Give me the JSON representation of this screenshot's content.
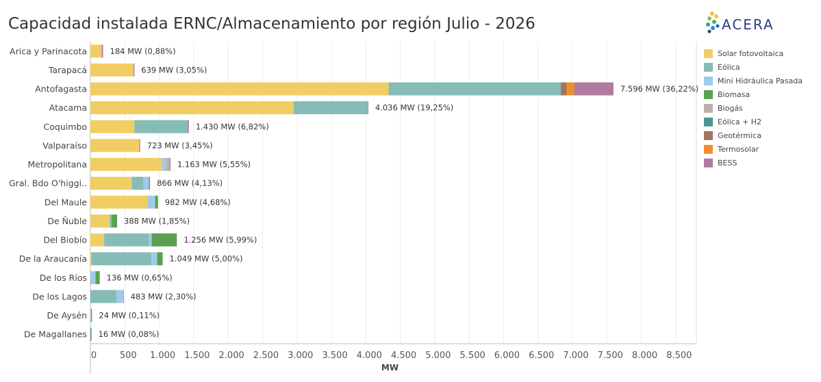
{
  "chart_data": {
    "type": "bar",
    "orientation": "horizontal",
    "stacked": true,
    "title": "Capacidad instalada ERNC/Almacenamiento por región Julio - 2026",
    "xlabel": "MW",
    "ylabel": "",
    "xlim": [
      0,
      8800
    ],
    "xticks": [
      0,
      500,
      1000,
      1500,
      2000,
      2500,
      3000,
      3500,
      4000,
      4500,
      5000,
      5500,
      6000,
      6500,
      7000,
      7500,
      8000,
      8500
    ],
    "xtick_labels": [
      "0",
      "500",
      "1.000",
      "1.500",
      "2.000",
      "2.500",
      "3.000",
      "3.500",
      "4.000",
      "4.500",
      "5.000",
      "5.500",
      "6.000",
      "6.500",
      "7.000",
      "7.500",
      "8.000",
      "8.500"
    ],
    "grid": true,
    "legend_position": "right",
    "categories": [
      "Arica y Parinacota",
      "Tarapacá",
      "Antofagasta",
      "Atacama",
      "Coquimbo",
      "Valparaíso",
      "Metropolitana",
      "Gral. Bdo O'higgi..",
      "Del Maule",
      "De Ñuble",
      "Del Biobío",
      "De la Araucanía",
      "De los Ríos",
      "De los Lagos",
      "De Aysén",
      "De Magallanes"
    ],
    "data_labels": [
      "184 MW  (0,88%)",
      "639 MW  (3,05%)",
      "7.596 MW  (36,22%)",
      "4.036 MW  (19,25%)",
      "1.430 MW  (6,82%)",
      "723 MW  (3,45%)",
      "1.163 MW  (5,55%)",
      "866 MW  (4,13%)",
      "982 MW  (4,68%)",
      "388 MW  (1,85%)",
      "1.256 MW  (5,99%)",
      "1.049 MW  (5,00%)",
      "136 MW  (0,65%)",
      "483 MW  (2,30%)",
      "24 MW  (0,11%)",
      "16 MW  (0,08%)"
    ],
    "series": [
      {
        "name": "Solar fotovoltaica",
        "color": "#f1ce63",
        "values": [
          165,
          625,
          4330,
          2950,
          640,
          710,
          1040,
          600,
          830,
          280,
          200,
          15,
          0,
          0,
          0,
          0
        ]
      },
      {
        "name": "Eólica",
        "color": "#86bcb6",
        "values": [
          0,
          0,
          2500,
          1075,
          770,
          0,
          0,
          170,
          0,
          30,
          650,
          865,
          0,
          380,
          0,
          0
        ]
      },
      {
        "name": "Mini Hidráulica Pasada",
        "color": "#a0cbe8",
        "values": [
          0,
          0,
          0,
          0,
          0,
          0,
          65,
          80,
          110,
          0,
          40,
          90,
          75,
          95,
          10,
          0
        ]
      },
      {
        "name": "Biomasa",
        "color": "#59a14f",
        "values": [
          0,
          0,
          0,
          0,
          0,
          0,
          0,
          0,
          42,
          78,
          366,
          79,
          61,
          0,
          0,
          0
        ]
      },
      {
        "name": "Biogás",
        "color": "#bab0ac",
        "values": [
          0,
          0,
          0,
          0,
          0,
          0,
          45,
          0,
          0,
          0,
          0,
          0,
          0,
          0,
          0,
          0
        ]
      },
      {
        "name": "Eólica + H2",
        "color": "#499894",
        "values": [
          0,
          0,
          0,
          0,
          0,
          0,
          0,
          0,
          0,
          0,
          0,
          0,
          0,
          0,
          0,
          16
        ]
      },
      {
        "name": "Geotérmica",
        "color": "#9d7660",
        "values": [
          0,
          0,
          86,
          0,
          0,
          0,
          0,
          0,
          0,
          0,
          0,
          0,
          0,
          0,
          0,
          0
        ]
      },
      {
        "name": "Termosolar",
        "color": "#f28e2b",
        "values": [
          0,
          0,
          110,
          0,
          0,
          0,
          0,
          0,
          0,
          0,
          0,
          0,
          0,
          0,
          0,
          0
        ]
      },
      {
        "name": "BESS",
        "color": "#b07aa1",
        "values": [
          19,
          14,
          570,
          11,
          20,
          13,
          13,
          16,
          0,
          0,
          0,
          0,
          0,
          8,
          14,
          0
        ]
      }
    ]
  },
  "logo": {
    "text": "ACERA"
  }
}
